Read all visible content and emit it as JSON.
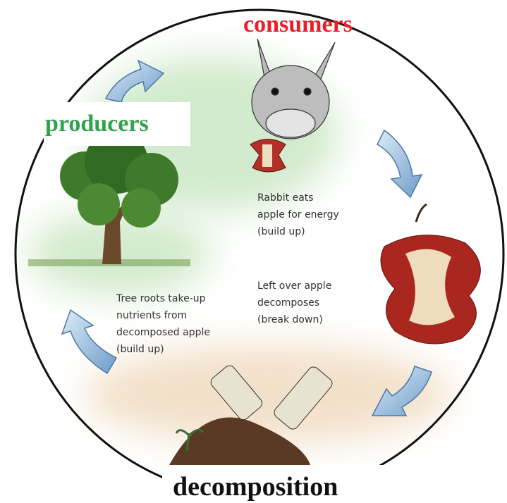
{
  "labels": {
    "consumers": "consumers",
    "producers": "producers",
    "decomposition": "decomposition"
  },
  "descriptions": {
    "rabbit": [
      "Rabbit eats",
      "apple for energy",
      "(build up)"
    ],
    "apple": [
      "Left over apple",
      "decomposes",
      "(break down)"
    ],
    "tree": [
      "Tree roots take-up",
      "nutrients from",
      "decomposed apple",
      "(build up)"
    ]
  }
}
